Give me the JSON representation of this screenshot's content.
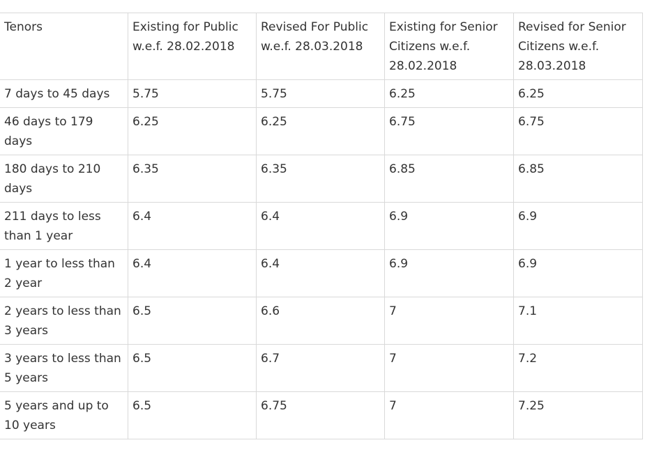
{
  "table": {
    "headers": [
      "Tenors",
      "Existing for Public w.e.f. 28.02.2018",
      "Revised For Public w.e.f. 28.03.2018",
      "Existing for Senior Citizens w.e.f. 28.02.2018",
      "Revised for Senior Citizens w.e.f. 28.03.2018"
    ],
    "rows": [
      [
        "7 days to 45 days",
        "5.75",
        "5.75",
        "6.25",
        "6.25"
      ],
      [
        "46 days to 179 days",
        "6.25",
        "6.25",
        "6.75",
        "6.75"
      ],
      [
        "180 days to 210 days",
        "6.35",
        "6.35",
        "6.85",
        "6.85"
      ],
      [
        "211 days to less than 1 year",
        "6.4",
        "6.4",
        "6.9",
        "6.9"
      ],
      [
        "1 year to less than 2 year",
        "6.4",
        "6.4",
        "6.9",
        "6.9"
      ],
      [
        "2 years to less than 3 years",
        "6.5",
        "6.6",
        "7",
        "7.1"
      ],
      [
        "3 years to less than 5 years",
        "6.5",
        "6.7",
        "7",
        "7.2"
      ],
      [
        "5 years and up to 10 years",
        "6.5",
        "6.75",
        "7",
        "7.25"
      ]
    ]
  }
}
